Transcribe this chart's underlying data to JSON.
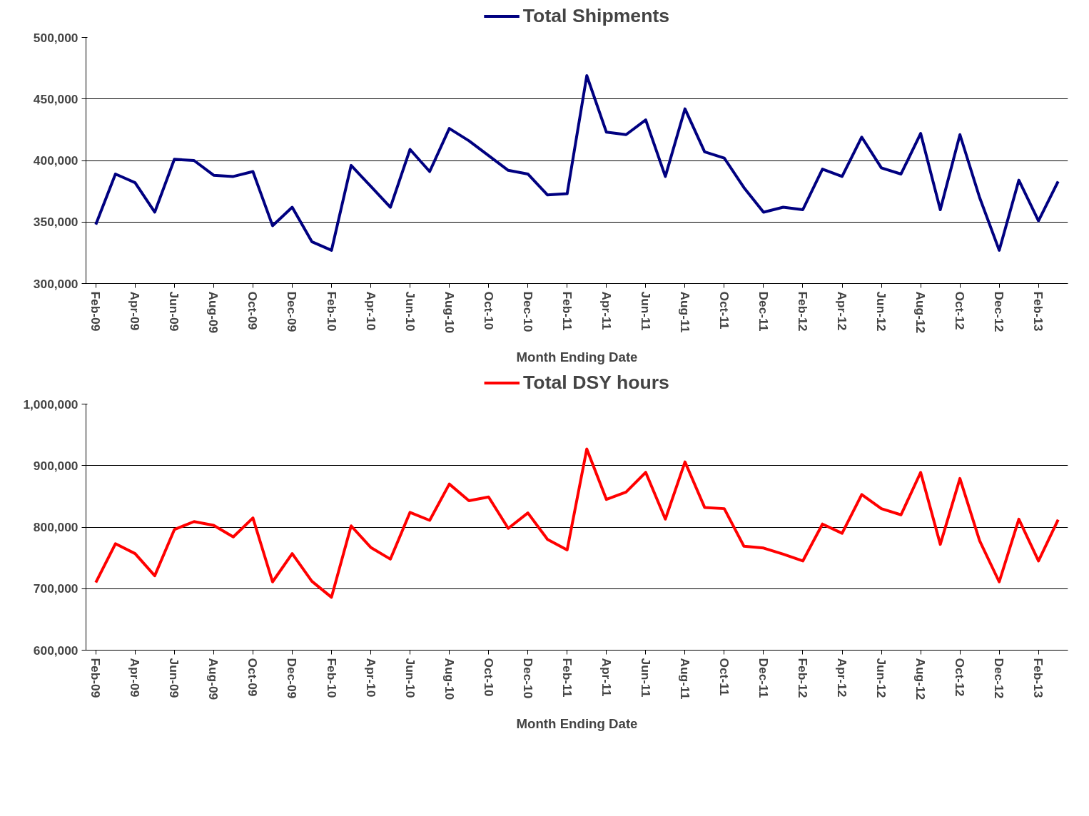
{
  "chart_data": [
    {
      "type": "line",
      "xlabel": "Month Ending Date",
      "legend": "top",
      "grid": "y",
      "line_style": "solid",
      "marker": "none",
      "categories": [
        "Feb-09",
        null,
        "Apr-09",
        null,
        "Jun-09",
        null,
        "Aug-09",
        null,
        "Oct-09",
        null,
        "Dec-09",
        null,
        "Feb-10",
        null,
        "Apr-10",
        null,
        "Jun-10",
        null,
        "Aug-10",
        null,
        "Oct-10",
        null,
        "Dec-10",
        null,
        "Feb-11",
        null,
        "Apr-11",
        null,
        "Jun-11",
        null,
        "Aug-11",
        null,
        "Oct-11",
        null,
        "Dec-11",
        null,
        "Feb-12",
        null,
        "Apr-12",
        null,
        "Jun-12",
        null,
        "Aug-12",
        null,
        "Oct-12",
        null,
        "Dec-12",
        null,
        "Feb-13",
        null
      ],
      "ylim": [
        300000,
        500000
      ],
      "yticks": [
        {
          "value": 300000,
          "label": "300,000"
        },
        {
          "value": 350000,
          "label": "350,000"
        },
        {
          "value": 400000,
          "label": "400,000"
        },
        {
          "value": 450000,
          "label": "450,000"
        },
        {
          "value": 500000,
          "label": "500,000"
        }
      ],
      "series": [
        {
          "name": "Total Shipments",
          "color": "#000080",
          "values": [
            348000,
            389000,
            382000,
            358000,
            401000,
            400000,
            388000,
            387000,
            391000,
            347000,
            362000,
            334000,
            327000,
            396000,
            379000,
            362000,
            409000,
            391000,
            426000,
            416000,
            404000,
            392000,
            389000,
            372000,
            373000,
            469000,
            423000,
            421000,
            433000,
            387000,
            442000,
            407000,
            402000,
            378000,
            358000,
            362000,
            360000,
            393000,
            387000,
            419000,
            394000,
            389000,
            422000,
            360000,
            421000,
            370000,
            327000,
            384000,
            351000,
            383000
          ]
        }
      ]
    },
    {
      "type": "line",
      "xlabel": "Month Ending Date",
      "legend": "top",
      "grid": "y",
      "line_style": "solid",
      "marker": "none",
      "categories": [
        "Feb-09",
        null,
        "Apr-09",
        null,
        "Jun-09",
        null,
        "Aug-09",
        null,
        "Oct-09",
        null,
        "Dec-09",
        null,
        "Feb-10",
        null,
        "Apr-10",
        null,
        "Jun-10",
        null,
        "Aug-10",
        null,
        "Oct-10",
        null,
        "Dec-10",
        null,
        "Feb-11",
        null,
        "Apr-11",
        null,
        "Jun-11",
        null,
        "Aug-11",
        null,
        "Oct-11",
        null,
        "Dec-11",
        null,
        "Feb-12",
        null,
        "Apr-12",
        null,
        "Jun-12",
        null,
        "Aug-12",
        null,
        "Oct-12",
        null,
        "Dec-12",
        null,
        "Feb-13",
        null
      ],
      "ylim": [
        600000,
        1000000
      ],
      "yticks": [
        {
          "value": 600000,
          "label": "600,000"
        },
        {
          "value": 700000,
          "label": "700,000"
        },
        {
          "value": 800000,
          "label": "800,000"
        },
        {
          "value": 900000,
          "label": "900,000"
        },
        {
          "value": 1000000,
          "label": "1,000,000"
        }
      ],
      "series": [
        {
          "name": "Total DSY hours",
          "color": "#ff0000",
          "values": [
            710000,
            773000,
            757000,
            721000,
            796000,
            809000,
            803000,
            784000,
            815000,
            711000,
            757000,
            712000,
            686000,
            802000,
            767000,
            748000,
            824000,
            811000,
            870000,
            843000,
            849000,
            798000,
            823000,
            780000,
            763000,
            927000,
            845000,
            857000,
            889000,
            813000,
            906000,
            832000,
            830000,
            769000,
            766000,
            756000,
            745000,
            805000,
            790000,
            853000,
            830000,
            820000,
            889000,
            772000,
            879000,
            778000,
            711000,
            813000,
            745000,
            812000
          ]
        }
      ]
    }
  ]
}
